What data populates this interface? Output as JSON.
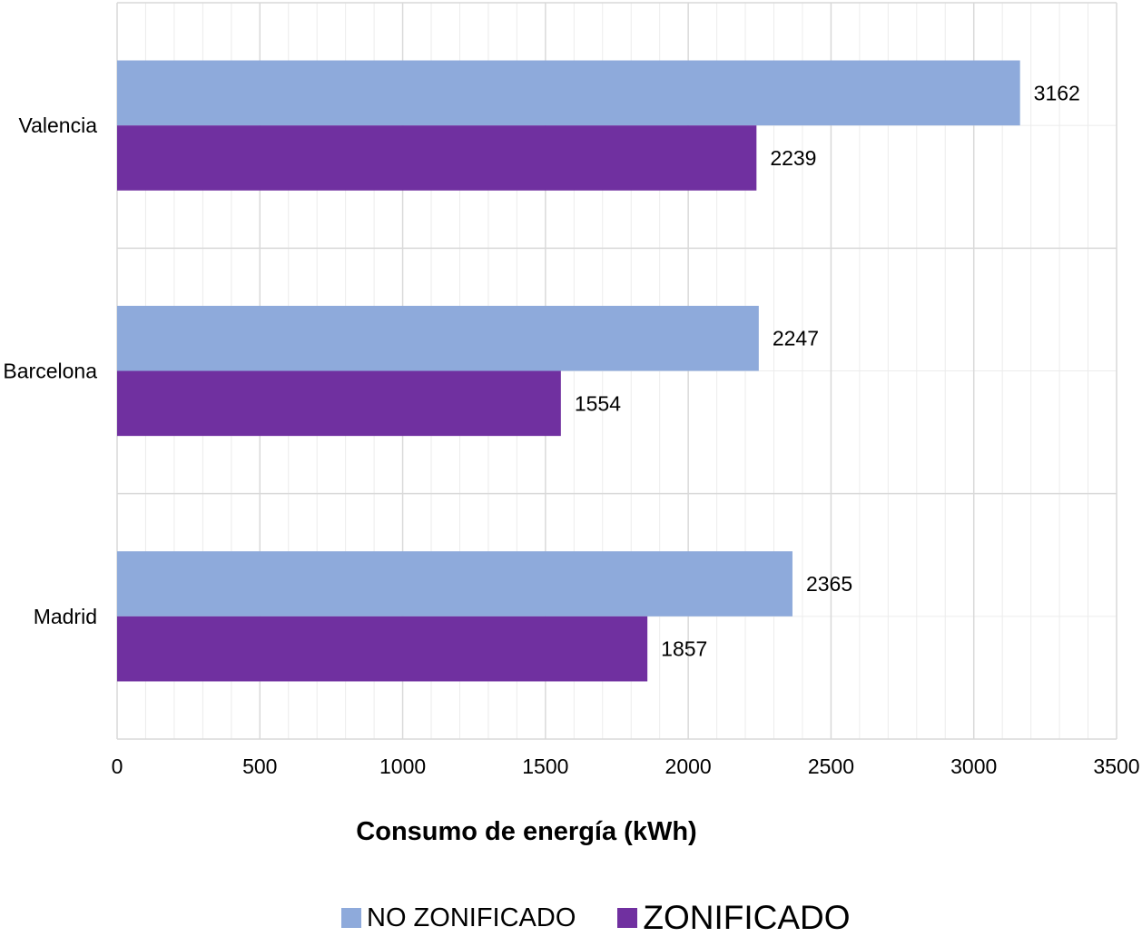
{
  "chart_data": {
    "type": "bar",
    "orientation": "horizontal",
    "categories": [
      "Valencia",
      "Barcelona",
      "Madrid"
    ],
    "series": [
      {
        "name": "NO ZONIFICADO",
        "color": "#8eaadb",
        "values": [
          3162,
          2247,
          2365
        ]
      },
      {
        "name": "ZONIFICADO",
        "color": "#7030a0",
        "values": [
          2239,
          1554,
          1857
        ]
      }
    ],
    "xlabel": "Consumo de energía (kWh)",
    "ylabel": "",
    "xlim": [
      0,
      3500
    ],
    "xticks": [
      0,
      500,
      1000,
      1500,
      2000,
      2500,
      3000,
      3500
    ],
    "xtick_labels": [
      "0",
      "500",
      "1000",
      "1500",
      "2000",
      "2500",
      "3000",
      "3500"
    ],
    "grid": true,
    "legend_position": "bottom",
    "data_labels": true
  }
}
